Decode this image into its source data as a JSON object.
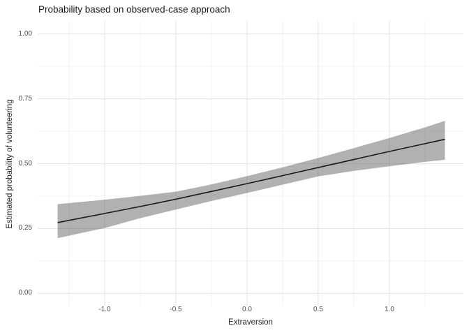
{
  "chart_data": {
    "type": "line",
    "title": "Probability based on observed-case approach",
    "xlabel": "Extraversion",
    "ylabel": "Estimated probability of volunteering",
    "x_domain": [
      -1.47,
      1.52
    ],
    "y_domain": [
      -0.05,
      1.05
    ],
    "x_ticks": {
      "values": [
        -1.0,
        -0.5,
        0.0,
        0.5,
        1.0
      ],
      "labels": [
        "-1.0",
        "-0.5",
        "0.0",
        "0.5",
        "1.0"
      ]
    },
    "x_minor_ticks": [
      -1.25,
      -0.75,
      -0.25,
      0.25,
      0.75,
      1.25
    ],
    "y_ticks": {
      "values": [
        0.0,
        0.25,
        0.5,
        0.75,
        1.0
      ],
      "labels": [
        "0.00",
        "0.25",
        "0.50",
        "0.75",
        "1.00"
      ]
    },
    "y_minor_ticks": [
      0.125,
      0.375,
      0.625,
      0.875
    ],
    "grid": true,
    "legend": false,
    "x": [
      -1.33,
      -1.0,
      -0.75,
      -0.5,
      -0.25,
      0.0,
      0.25,
      0.5,
      0.75,
      1.0,
      1.25,
      1.39
    ],
    "series": [
      {
        "name": "fitted-probability-line",
        "kind": "line",
        "values": [
          0.273,
          0.308,
          0.335,
          0.363,
          0.393,
          0.423,
          0.454,
          0.485,
          0.516,
          0.547,
          0.577,
          0.594
        ]
      },
      {
        "name": "confidence-ribbon",
        "kind": "band",
        "upper": [
          0.344,
          0.361,
          0.376,
          0.392,
          0.42,
          0.452,
          0.486,
          0.522,
          0.56,
          0.599,
          0.64,
          0.665
        ],
        "lower": [
          0.213,
          0.252,
          0.29,
          0.323,
          0.356,
          0.387,
          0.419,
          0.451,
          0.472,
          0.49,
          0.507,
          0.515
        ]
      }
    ]
  },
  "colors": {
    "line": "#1a1a1a",
    "ribbon": "rgba(85,85,85,0.46)",
    "grid_major": "#e5e5e5",
    "grid_minor": "#f0f0f0",
    "tick_text": "#4d4d4d",
    "title_text": "#1a1a1a",
    "background": "#ffffff"
  }
}
